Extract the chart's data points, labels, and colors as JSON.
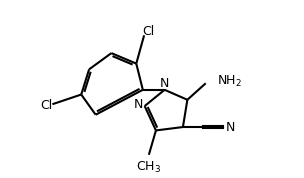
{
  "bg_color": "#ffffff",
  "line_color": "#000000",
  "line_width": 1.5,
  "font_size": 9,
  "xlim": [
    0.5,
    9.5
  ],
  "ylim": [
    0.0,
    6.5
  ]
}
